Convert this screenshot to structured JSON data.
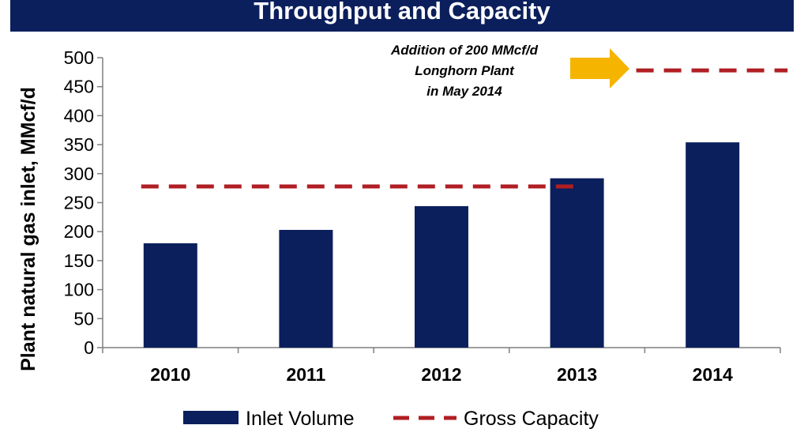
{
  "header": {
    "title": "Throughput and Capacity"
  },
  "colors": {
    "bar": "#0b1f5c",
    "capacity": "#b01e23",
    "arrow": "#f5b400",
    "title_bg": "#0b1f5c"
  },
  "chart_data": {
    "type": "bar",
    "categories": [
      "2010",
      "2011",
      "2012",
      "2013",
      "2014"
    ],
    "series": [
      {
        "name": "Inlet Volume",
        "values": [
          180,
          203,
          244,
          292,
          354
        ]
      }
    ],
    "capacity_lines": [
      {
        "name": "Gross Capacity",
        "value": 278,
        "from_category": "2010",
        "to_category": "2013"
      },
      {
        "name": "Gross Capacity",
        "value": 478,
        "from_category": "2013",
        "to_category": "2014"
      }
    ],
    "ylabel": "Plant natural gas inlet, MMcf/d",
    "ylim": [
      0,
      500
    ],
    "yticks": [
      0,
      50,
      100,
      150,
      200,
      250,
      300,
      350,
      400,
      450,
      500
    ],
    "legend": {
      "placement": "bottom",
      "entries": [
        "Inlet Volume",
        "Gross Capacity"
      ]
    },
    "annotation": {
      "lines": [
        "Addition of 200 MMcf/d",
        "Longhorn Plant",
        "in May 2014"
      ],
      "icon": "arrow-right-icon"
    }
  }
}
